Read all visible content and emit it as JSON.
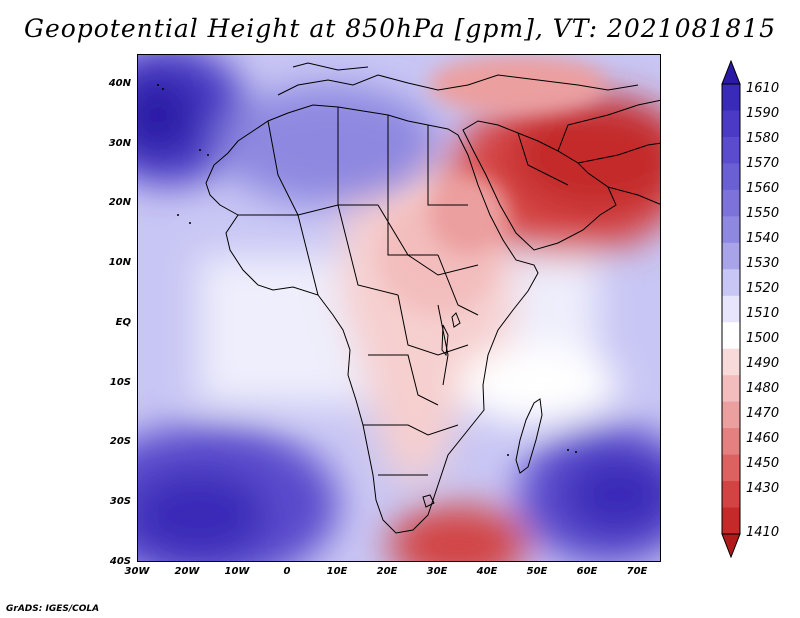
{
  "title": "Geopotential Height at 850hPa [gpm], VT: 2021081815",
  "footer": "GrADS: IGES/COLA",
  "map": {
    "variable": "Geopotential Height",
    "level": "850hPa",
    "units": "gpm",
    "valid_time": "2021081815",
    "lon_range": [
      -30,
      75
    ],
    "lat_range": [
      -40,
      45
    ],
    "x_ticks": [
      "30W",
      "20W",
      "10W",
      "0",
      "10E",
      "20E",
      "30E",
      "40E",
      "50E",
      "60E",
      "70E"
    ],
    "y_ticks": [
      "40N",
      "30N",
      "20N",
      "10N",
      "EQ",
      "10S",
      "20S",
      "30S",
      "40S"
    ]
  },
  "colorbar": {
    "labels": [
      "1610",
      "1590",
      "1580",
      "1570",
      "1560",
      "1550",
      "1540",
      "1530",
      "1520",
      "1510",
      "1500",
      "1490",
      "1480",
      "1470",
      "1460",
      "1450",
      "1430",
      "1410"
    ],
    "colors": [
      "#2a1aa6",
      "#3a2ab8",
      "#4a3ac4",
      "#5a4ccc",
      "#6b5fd4",
      "#7c72da",
      "#8e88e0",
      "#a9a4ea",
      "#c8c6f4",
      "#e6e5fb",
      "#ffffff",
      "#f9dada",
      "#f3bdbd",
      "#ec9f9f",
      "#e48080",
      "#dc6262",
      "#d24444",
      "#c42a2a",
      "#b01a1a"
    ]
  }
}
